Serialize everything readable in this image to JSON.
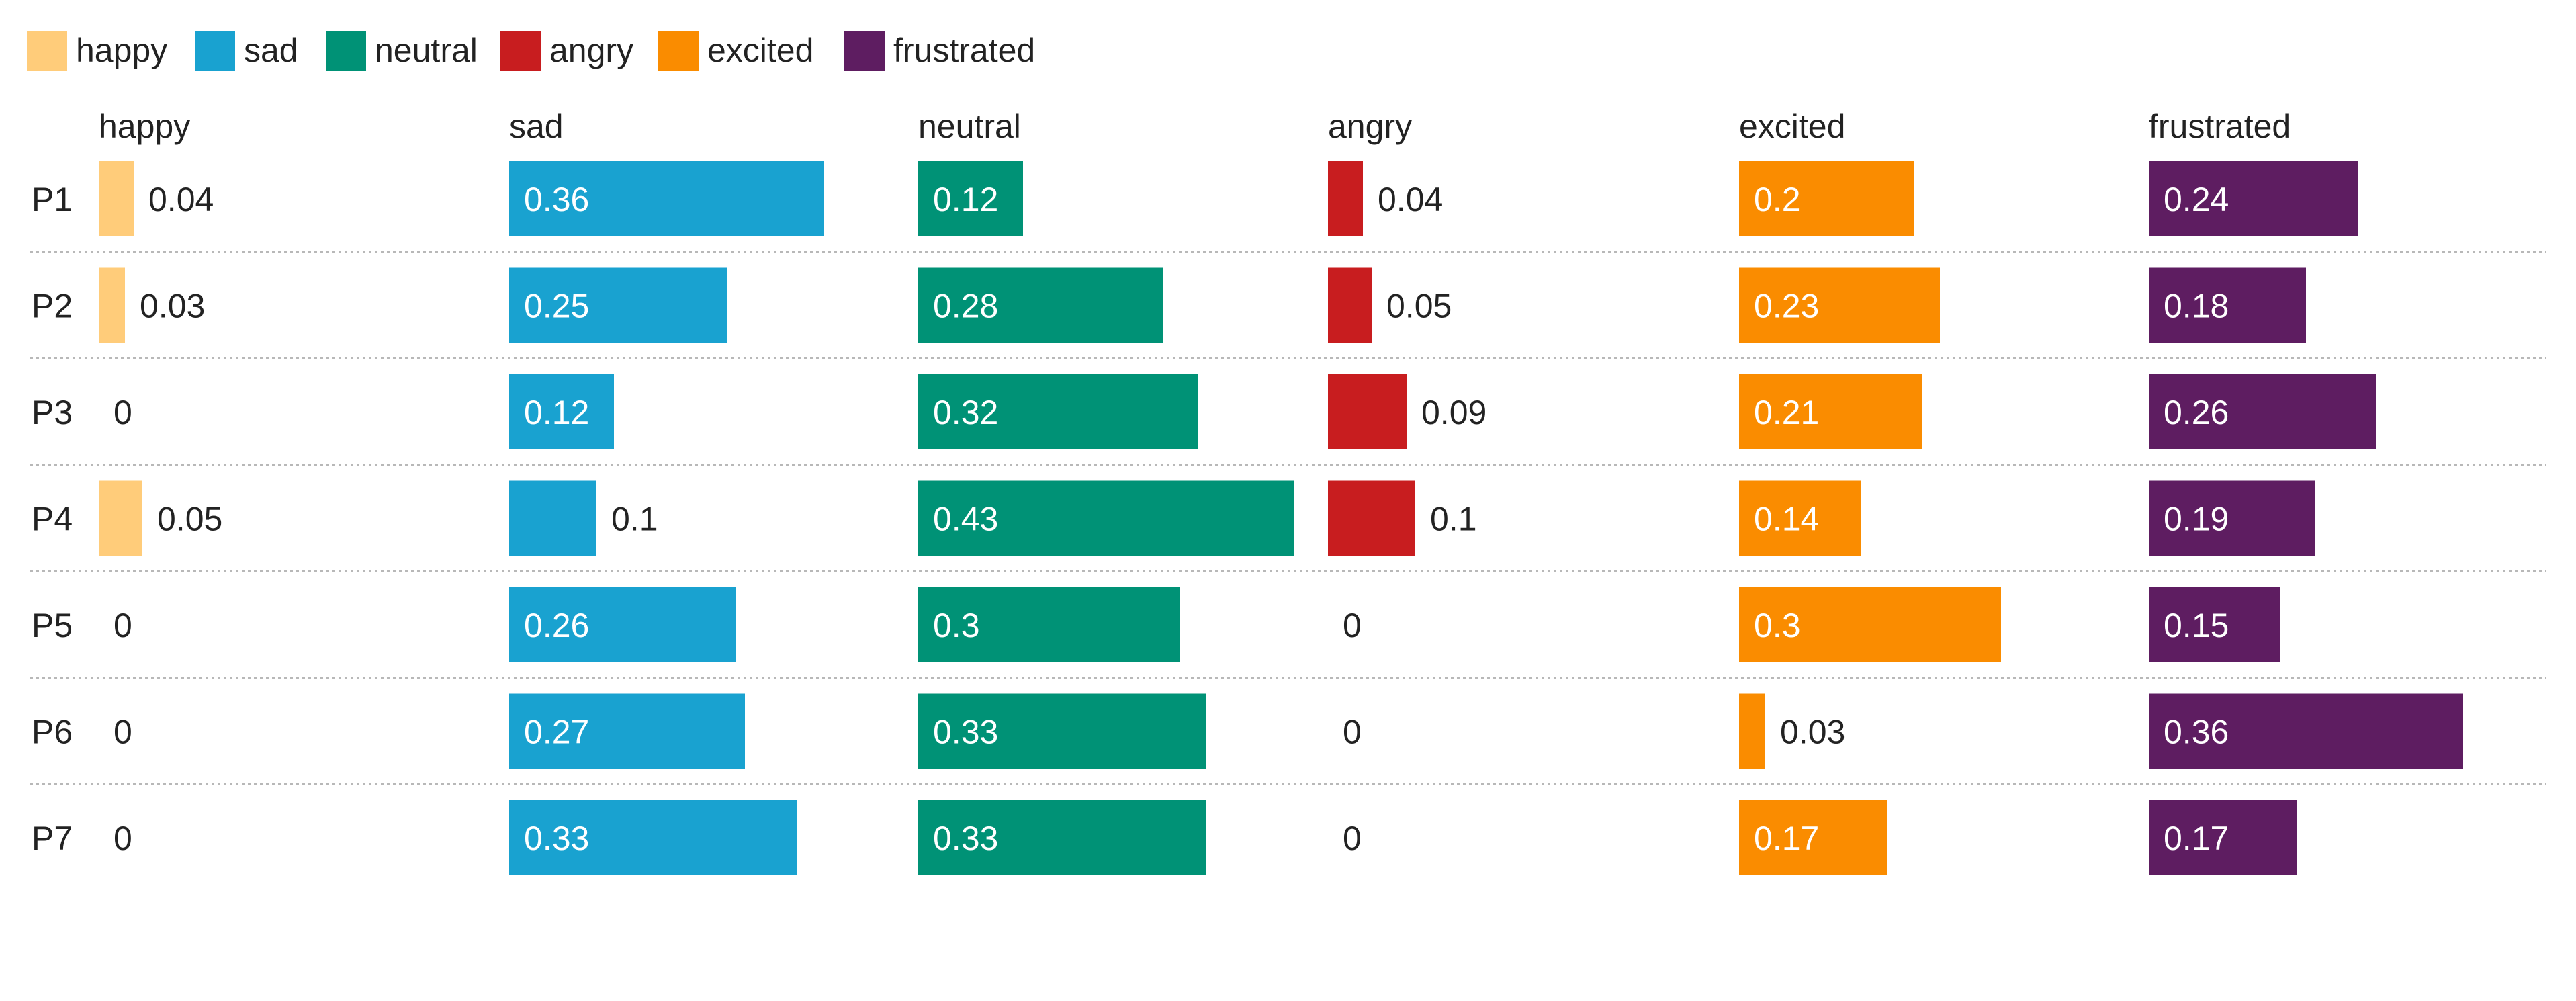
{
  "chart_data": {
    "type": "bar",
    "layout": "small-multiples-horizontal",
    "categories": [
      "P1",
      "P2",
      "P3",
      "P4",
      "P5",
      "P6",
      "P7"
    ],
    "series": [
      {
        "name": "happy",
        "color": "#FFCC7A",
        "label_color": "#222222",
        "values": [
          0.04,
          0.03,
          0,
          0.05,
          0,
          0,
          0
        ]
      },
      {
        "name": "sad",
        "color": "#19A2D0",
        "label_color": "#ffffff",
        "values": [
          0.36,
          0.25,
          0.12,
          0.1,
          0.26,
          0.27,
          0.33
        ]
      },
      {
        "name": "neutral",
        "color": "#009276",
        "label_color": "#ffffff",
        "values": [
          0.12,
          0.28,
          0.32,
          0.43,
          0.3,
          0.33,
          0.33
        ]
      },
      {
        "name": "angry",
        "color": "#C81D1F",
        "label_color": "#ffffff",
        "values": [
          0.04,
          0.05,
          0.09,
          0.1,
          0,
          0,
          0
        ]
      },
      {
        "name": "excited",
        "color": "#FA8C00",
        "label_color": "#ffffff",
        "values": [
          0.2,
          0.23,
          0.21,
          0.14,
          0.3,
          0.03,
          0.17
        ]
      },
      {
        "name": "frustrated",
        "color": "#5E1D61",
        "label_color": "#ffffff",
        "values": [
          0.24,
          0.18,
          0.26,
          0.19,
          0.15,
          0.36,
          0.17
        ]
      }
    ],
    "value_labels": [
      [
        "0.04",
        "0.03",
        "0",
        "0.05",
        "0",
        "0",
        "0"
      ],
      [
        "0.36",
        "0.25",
        "0.12",
        "0.1",
        "0.26",
        "0.27",
        "0.33"
      ],
      [
        "0.12",
        "0.28",
        "0.32",
        "0.43",
        "0.3",
        "0.33",
        "0.33"
      ],
      [
        "0.04",
        "0.05",
        "0.09",
        "0.1",
        "0",
        "0",
        "0"
      ],
      [
        "0.2",
        "0.23",
        "0.21",
        "0.14",
        "0.3",
        "0.03",
        "0.17"
      ],
      [
        "0.24",
        "0.18",
        "0.26",
        "0.19",
        "0.15",
        "0.36",
        "0.17"
      ]
    ],
    "xlim": [
      0,
      0.45
    ],
    "legend": "top-left",
    "grid": false,
    "row_separators": "dotted"
  }
}
